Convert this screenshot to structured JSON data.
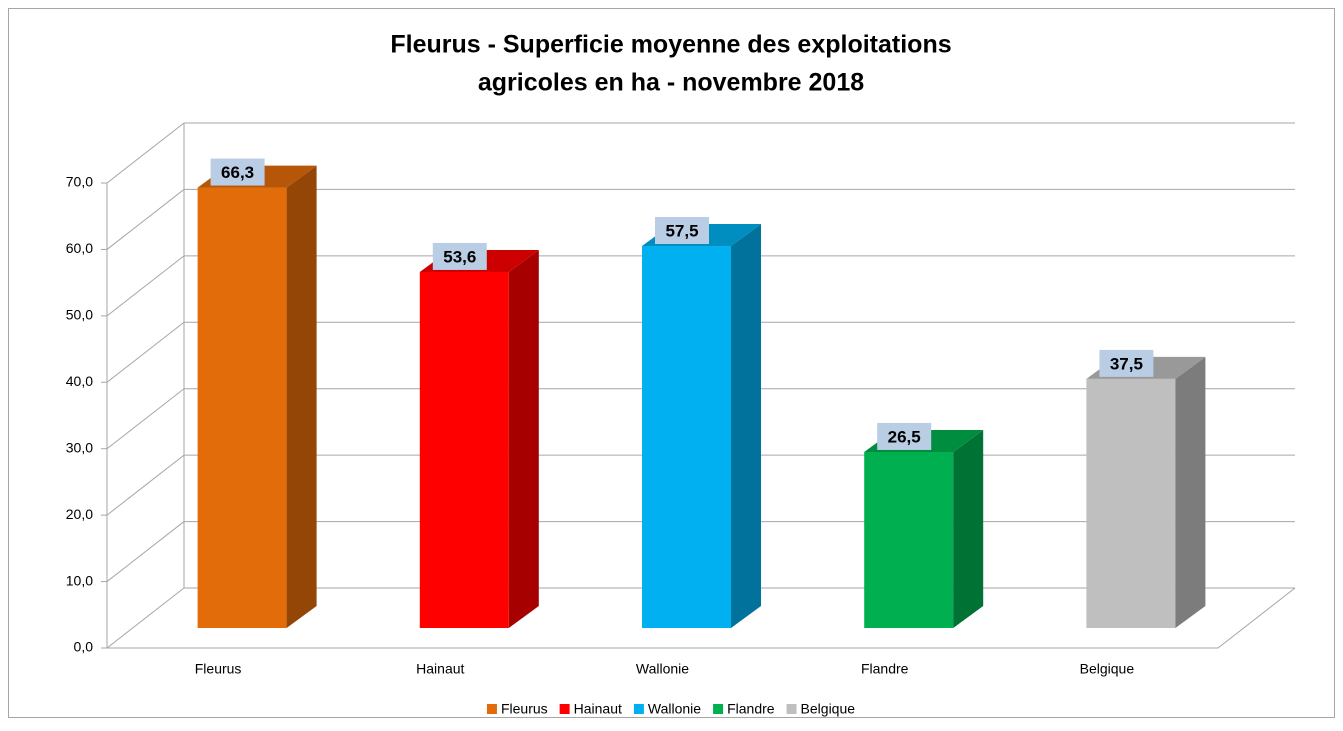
{
  "chart_data": {
    "type": "bar3d",
    "title": [
      "Fleurus - Superficie moyenne des exploitations",
      "agricoles en ha - novembre 2018"
    ],
    "categories": [
      "Fleurus",
      "Hainaut",
      "Wallonie",
      "Flandre",
      "Belgique"
    ],
    "values": [
      66.3,
      53.6,
      57.5,
      26.5,
      37.5
    ],
    "value_labels": [
      "66,3",
      "53,6",
      "57,5",
      "26,5",
      "37,5"
    ],
    "colors": [
      "#e36c0a",
      "#ff0000",
      "#00b0f0",
      "#00b050",
      "#bfbfbf"
    ],
    "ylim": [
      0,
      70
    ],
    "yticks": [
      {
        "value": 0,
        "label": "0,0"
      },
      {
        "value": 10,
        "label": "10,0"
      },
      {
        "value": 20,
        "label": "20,0"
      },
      {
        "value": 30,
        "label": "30,0"
      },
      {
        "value": 40,
        "label": "40,0"
      },
      {
        "value": 50,
        "label": "50,0"
      },
      {
        "value": 60,
        "label": "60,0"
      },
      {
        "value": 70,
        "label": "70,0"
      }
    ],
    "grid": true,
    "legend": "bottom"
  }
}
